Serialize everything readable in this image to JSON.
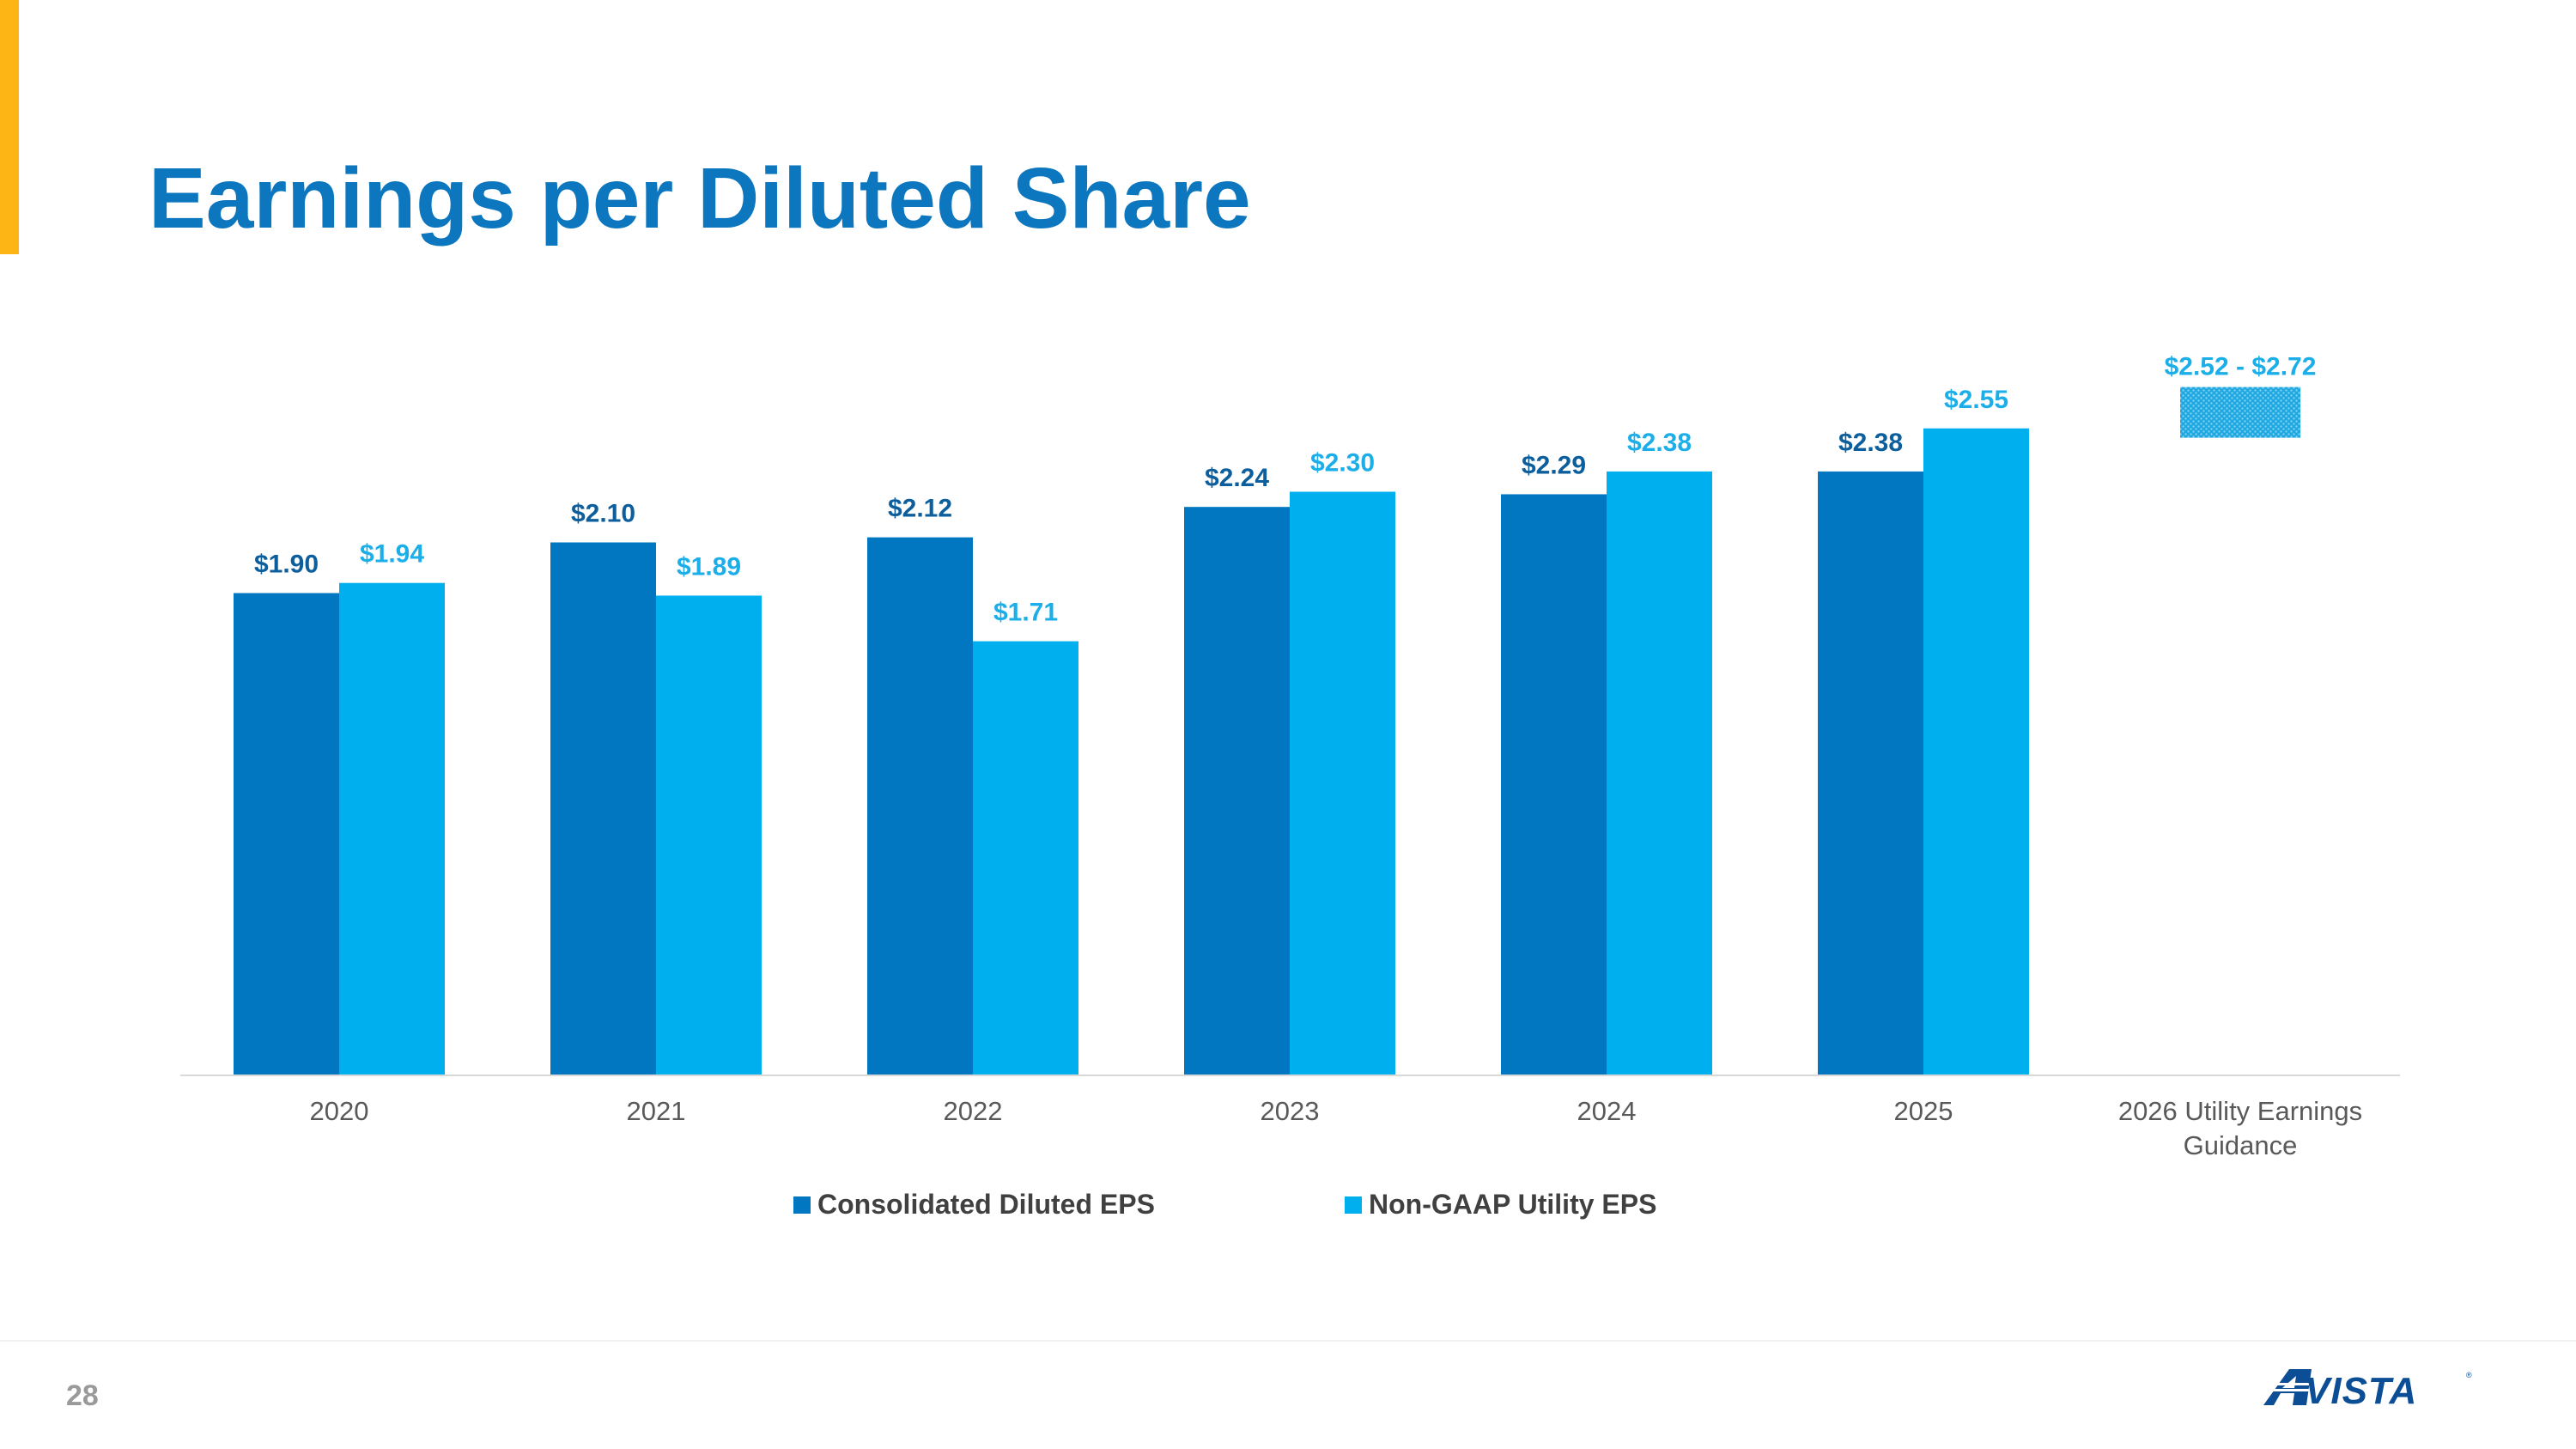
{
  "page": {
    "title": "Earnings per Diluted Share",
    "page_number": "28",
    "logo_text": "AVISTA"
  },
  "colors": {
    "accent": "#FDB515",
    "title": "#0C77BE",
    "series_consolidated": "#0077C0",
    "series_utility": "#00B0EE",
    "guidance": "#1DA8E1"
  },
  "chart_data": {
    "type": "bar",
    "title": "",
    "xlabel": "",
    "ylabel": "",
    "ylim": [
      0,
      2.9
    ],
    "grid": false,
    "legend_position": "bottom",
    "categories": [
      "2020",
      "2021",
      "2022",
      "2023",
      "2024",
      "2025",
      "2026 Utility Earnings Guidance"
    ],
    "series": [
      {
        "name": "Consolidated Diluted EPS",
        "color": "#0077C0",
        "values": [
          1.9,
          2.1,
          2.12,
          2.24,
          2.29,
          2.38,
          null
        ],
        "labels": [
          "$1.90",
          "$2.10",
          "$2.12",
          "$2.24",
          "$2.29",
          "$2.38",
          ""
        ]
      },
      {
        "name": "Non-GAAP Utility EPS",
        "color": "#00B0EE",
        "values": [
          1.94,
          1.89,
          1.71,
          2.3,
          2.38,
          2.55,
          null
        ],
        "labels": [
          "$1.94",
          "$1.89",
          "$1.71",
          "$2.30",
          "$2.38",
          "$2.55",
          ""
        ]
      }
    ],
    "guidance": {
      "category": "2026 Utility Earnings Guidance",
      "low": 2.52,
      "high": 2.72,
      "label": "$2.52 - $2.72",
      "pattern": "dotted"
    }
  }
}
